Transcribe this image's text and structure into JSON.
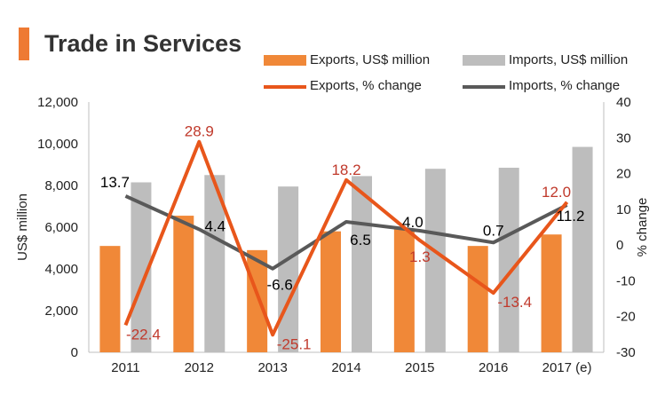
{
  "title": "Trade in Services",
  "colors": {
    "exports_bar": "#F08838",
    "imports_bar": "#BDBDBD",
    "exports_line": "#E8561B",
    "imports_line": "#595959",
    "exports_label": "#C0392B",
    "imports_label": "#000000",
    "title_accent": "#EE7A33"
  },
  "chart_data": {
    "type": "bar",
    "categories": [
      "2011",
      "2012",
      "2013",
      "2014",
      "2015",
      "2016",
      "2017 (e)"
    ],
    "series": [
      {
        "name": "Exports, US$ million",
        "type": "bar",
        "axis": "left",
        "values": [
          5100,
          6550,
          4900,
          5800,
          5900,
          5100,
          5650
        ]
      },
      {
        "name": "Imports, US$ million",
        "type": "bar",
        "axis": "left",
        "values": [
          8150,
          8500,
          7950,
          8450,
          8800,
          8850,
          9850
        ]
      },
      {
        "name": "Exports, % change",
        "type": "line",
        "axis": "right",
        "values": [
          -22.4,
          28.9,
          -25.1,
          18.2,
          1.3,
          -13.4,
          12.0
        ],
        "labels": [
          "-22.4",
          "28.9",
          "-25.1",
          "18.2",
          "1.3",
          "-13.4",
          "12.0"
        ]
      },
      {
        "name": "Imports, % change",
        "type": "line",
        "axis": "right",
        "values": [
          13.7,
          4.4,
          -6.6,
          6.5,
          4.0,
          0.7,
          11.2
        ],
        "labels": [
          "13.7",
          "4.4",
          "-6.6",
          "6.5",
          "4.0",
          "0.7",
          "11.2"
        ]
      }
    ],
    "ylabel": "US$ million",
    "ylim": [
      0,
      12000
    ],
    "yticks": [
      "0",
      "2,000",
      "4,000",
      "6,000",
      "8,000",
      "10,000",
      "12,000"
    ],
    "ylabel_right": "% change",
    "ylim_right": [
      -30,
      40
    ],
    "yticks_right": [
      "-30",
      "-20",
      "-10",
      "0",
      "10",
      "20",
      "30",
      "40"
    ],
    "legend_position": "top-right",
    "grid": false
  }
}
